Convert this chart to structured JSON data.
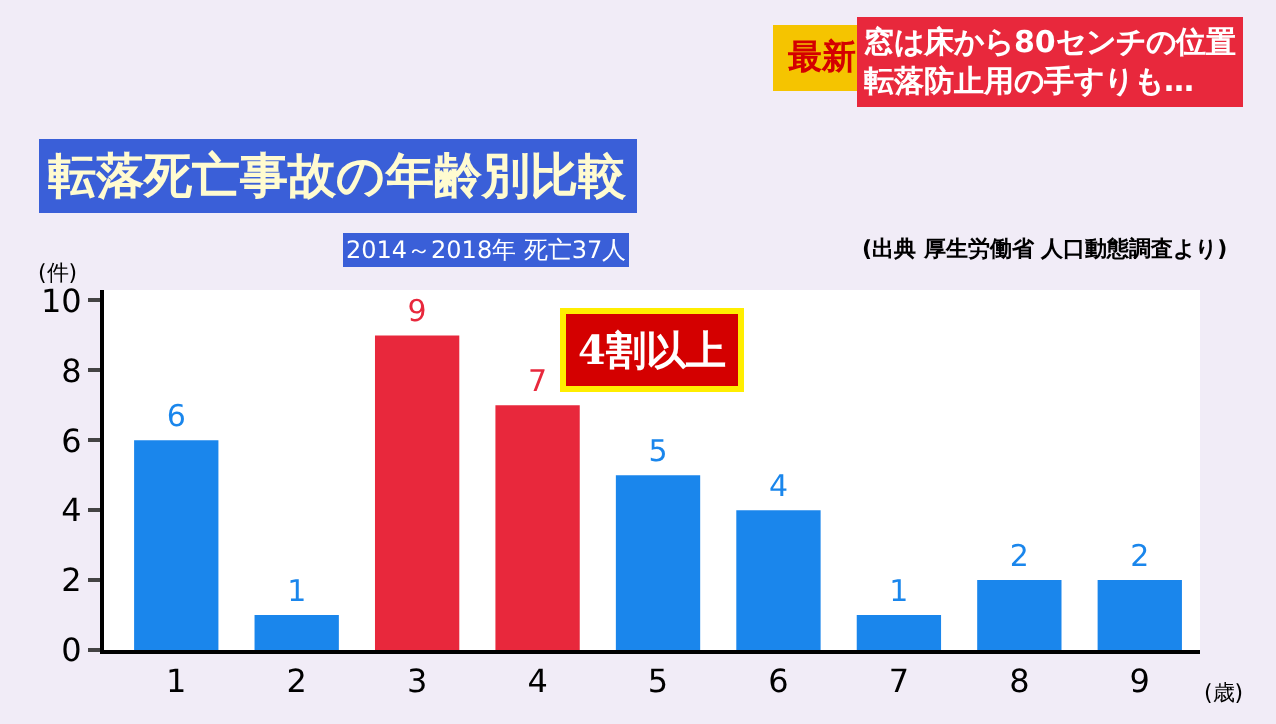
{
  "chart_data": {
    "type": "bar",
    "title": "転落死亡事故の年齢別比較",
    "subtitle": "2014～2018年 死亡37人",
    "xlabel": "(歳)",
    "ylabel": "(件)",
    "categories": [
      "1",
      "2",
      "3",
      "4",
      "5",
      "6",
      "7",
      "8",
      "9"
    ],
    "values": [
      6,
      1,
      9,
      7,
      5,
      4,
      1,
      2,
      2
    ],
    "colors": [
      "#1a86ec",
      "#1a86ec",
      "#e8283c",
      "#e8283c",
      "#1a86ec",
      "#1a86ec",
      "#1a86ec",
      "#1a86ec",
      "#1a86ec"
    ],
    "ylim": [
      0,
      10.3
    ],
    "yticks": [
      0,
      2,
      4,
      6,
      8,
      10
    ],
    "data_labels": true,
    "legend": false,
    "annotations": [
      "(出典 厚生労働省 人口動態調査より)",
      "4割以上",
      "最新",
      "窓は床から80センチの位置",
      "転落防止用の手すりも…"
    ]
  }
}
